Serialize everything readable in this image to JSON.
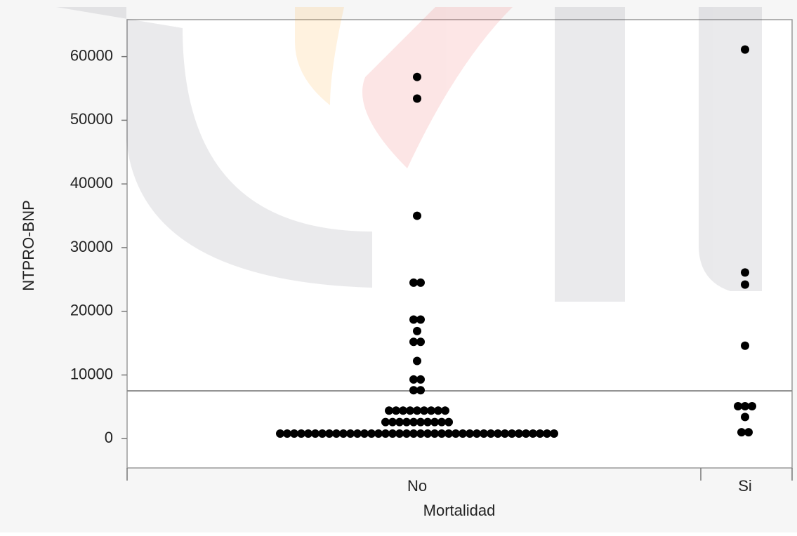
{
  "chart_data": {
    "type": "dotplot",
    "x_label": "Mortalidad",
    "y_label": "NTPRO-BNP",
    "categories": [
      "No",
      "Si"
    ],
    "values": [
      [
        56800,
        53400,
        35000,
        24500,
        24500,
        18700,
        18700,
        16900,
        15200,
        15200,
        12200,
        9300,
        9300,
        7600,
        7600,
        4400,
        4400,
        4400,
        4400,
        4400,
        4400,
        4400,
        4400,
        4400,
        2600,
        2600,
        2600,
        2600,
        2600,
        2600,
        2600,
        2600,
        2600,
        2600,
        800,
        800,
        800,
        800,
        800,
        800,
        800,
        800,
        800,
        800,
        800,
        800,
        800,
        800,
        800,
        800,
        800,
        800,
        800,
        800,
        800,
        800,
        800,
        800,
        800,
        800,
        800,
        800,
        800,
        800,
        800,
        800,
        800,
        800,
        800,
        800,
        800,
        800,
        800,
        800
      ],
      [
        61100,
        26100,
        24200,
        14600,
        5100,
        5100,
        5100,
        3400,
        1000,
        1000
      ]
    ],
    "color": "#000000",
    "reference_line": 7500,
    "ylim": [
      -4600,
      65800
    ],
    "yticks": [
      0,
      10000,
      20000,
      30000,
      40000,
      50000,
      60000
    ]
  }
}
